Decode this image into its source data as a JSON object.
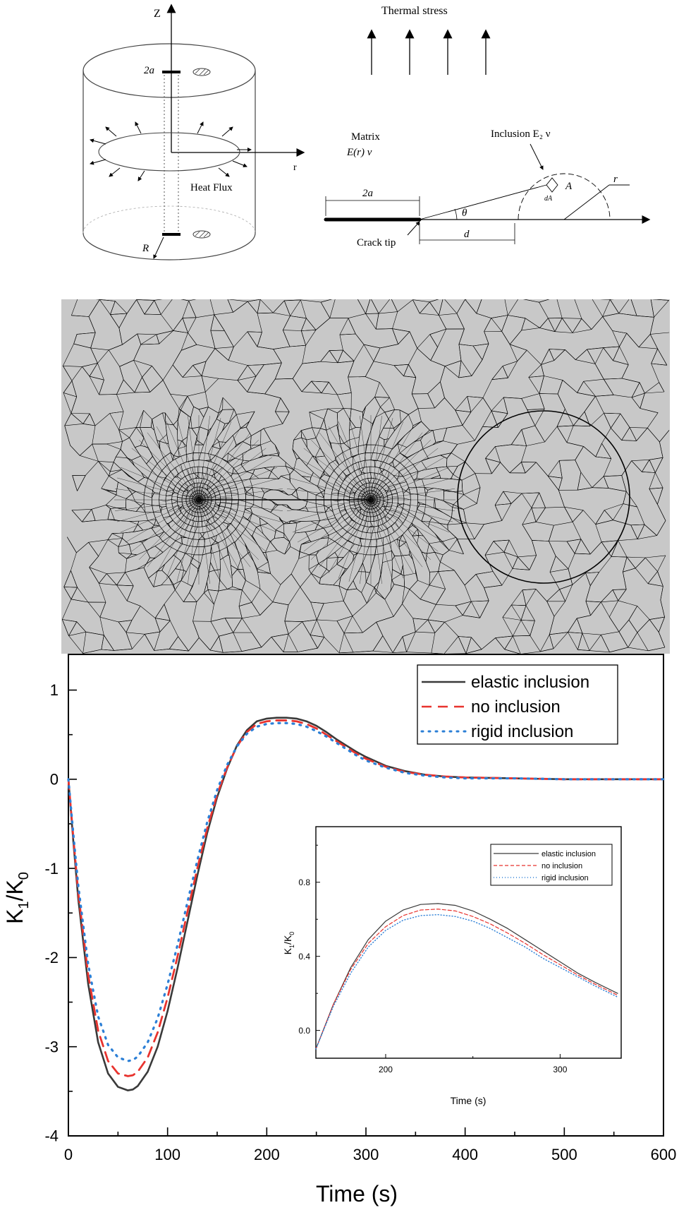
{
  "schematic": {
    "cylinder_labels": {
      "z_axis": "Z",
      "r_axis": "r",
      "crack_length": "2a",
      "heat_flux": "Heat Flux",
      "radius": "R"
    },
    "crack_labels": {
      "thermal_stress": "Thermal stress",
      "matrix_line1": "Matrix",
      "matrix_line2": "E(r) ν",
      "inclusion": "Inclusion E₂ ν",
      "crack_length": "2a",
      "angle": "θ",
      "area": "A",
      "area_element": "dA",
      "radius": "r",
      "distance": "d",
      "crack_tip": "Crack tip"
    }
  },
  "mesh": {
    "description_visible": false
  },
  "chart_data": [
    {
      "type": "line",
      "title": "",
      "xlabel": "Time (s)",
      "ylabel": "K1/K0",
      "xlim": [
        0,
        600
      ],
      "ylim": [
        -4,
        1.4
      ],
      "xticks": [
        "0",
        "100",
        "200",
        "300",
        "400",
        "500",
        "600"
      ],
      "yticks": [
        "-4",
        "-3",
        "-2",
        "-1",
        "0",
        "1"
      ],
      "legend_position": "top-right",
      "grid": false,
      "series": [
        {
          "name": "elastic inclusion",
          "color": "#3a3a3a",
          "style": "solid",
          "x": [
            0,
            5,
            10,
            20,
            30,
            40,
            50,
            60,
            65,
            70,
            80,
            90,
            100,
            110,
            120,
            130,
            140,
            150,
            160,
            170,
            180,
            190,
            200,
            210,
            220,
            230,
            240,
            250,
            260,
            270,
            280,
            290,
            300,
            320,
            340,
            360,
            380,
            400,
            450,
            500,
            550,
            600
          ],
          "y": [
            0,
            -0.7,
            -1.35,
            -2.3,
            -2.95,
            -3.3,
            -3.45,
            -3.49,
            -3.48,
            -3.44,
            -3.28,
            -3.0,
            -2.6,
            -2.12,
            -1.6,
            -1.08,
            -0.6,
            -0.2,
            0.12,
            0.38,
            0.55,
            0.65,
            0.68,
            0.69,
            0.69,
            0.68,
            0.65,
            0.6,
            0.53,
            0.45,
            0.38,
            0.31,
            0.25,
            0.15,
            0.09,
            0.05,
            0.03,
            0.02,
            0.01,
            0.0,
            0.0,
            0.0
          ]
        },
        {
          "name": "no inclusion",
          "color": "#e8332e",
          "style": "dashed",
          "x": [
            0,
            5,
            10,
            20,
            30,
            40,
            50,
            60,
            65,
            70,
            80,
            90,
            100,
            110,
            120,
            130,
            140,
            150,
            160,
            170,
            180,
            190,
            200,
            210,
            220,
            230,
            240,
            250,
            260,
            270,
            280,
            290,
            300,
            320,
            340,
            360,
            380,
            400,
            450,
            500,
            550,
            600
          ],
          "y": [
            0,
            -0.66,
            -1.28,
            -2.2,
            -2.82,
            -3.16,
            -3.3,
            -3.33,
            -3.32,
            -3.28,
            -3.12,
            -2.84,
            -2.45,
            -1.99,
            -1.49,
            -1.0,
            -0.55,
            -0.17,
            0.13,
            0.37,
            0.53,
            0.62,
            0.65,
            0.66,
            0.66,
            0.65,
            0.62,
            0.57,
            0.5,
            0.43,
            0.36,
            0.29,
            0.23,
            0.14,
            0.08,
            0.05,
            0.03,
            0.02,
            0.01,
            0.0,
            0.0,
            0.0
          ]
        },
        {
          "name": "rigid inclusion",
          "color": "#2b7fd6",
          "style": "dotted",
          "x": [
            0,
            5,
            10,
            20,
            30,
            40,
            50,
            60,
            65,
            70,
            80,
            90,
            100,
            110,
            120,
            130,
            140,
            150,
            160,
            170,
            180,
            190,
            200,
            210,
            220,
            230,
            240,
            250,
            260,
            270,
            280,
            290,
            300,
            320,
            340,
            360,
            380,
            400,
            450,
            500,
            550,
            600
          ],
          "y": [
            0,
            -0.62,
            -1.2,
            -2.08,
            -2.66,
            -2.98,
            -3.12,
            -3.16,
            -3.15,
            -3.11,
            -2.95,
            -2.68,
            -2.3,
            -1.86,
            -1.38,
            -0.91,
            -0.48,
            -0.12,
            0.16,
            0.37,
            0.51,
            0.59,
            0.62,
            0.63,
            0.63,
            0.62,
            0.59,
            0.54,
            0.48,
            0.41,
            0.34,
            0.27,
            0.21,
            0.13,
            0.07,
            0.04,
            0.02,
            0.01,
            0.01,
            0.0,
            0.0,
            0.0
          ]
        }
      ]
    },
    {
      "type": "line",
      "title": "",
      "xlabel": "Time (s)",
      "ylabel": "K1/K0",
      "xlim": [
        160,
        335
      ],
      "ylim": [
        -0.15,
        1.1
      ],
      "xticks": [
        "200",
        "300"
      ],
      "yticks": [
        "0.0",
        "0.4",
        "0.8"
      ],
      "legend_position": "top-right",
      "grid": false,
      "series": [
        {
          "name": "elastic inclusion",
          "color": "#3a3a3a",
          "style": "solid",
          "x": [
            160,
            170,
            180,
            190,
            200,
            210,
            220,
            230,
            240,
            250,
            260,
            270,
            280,
            290,
            300,
            310,
            320,
            333
          ],
          "y": [
            -0.1,
            0.14,
            0.34,
            0.49,
            0.59,
            0.65,
            0.68,
            0.685,
            0.675,
            0.645,
            0.6,
            0.55,
            0.49,
            0.43,
            0.37,
            0.31,
            0.26,
            0.2
          ]
        },
        {
          "name": "no inclusion",
          "color": "#e8332e",
          "style": "dashed",
          "x": [
            160,
            170,
            180,
            190,
            200,
            210,
            220,
            230,
            240,
            250,
            260,
            270,
            280,
            290,
            300,
            310,
            320,
            333
          ],
          "y": [
            -0.1,
            0.14,
            0.33,
            0.47,
            0.56,
            0.62,
            0.65,
            0.655,
            0.645,
            0.615,
            0.575,
            0.525,
            0.47,
            0.41,
            0.355,
            0.3,
            0.25,
            0.19
          ]
        },
        {
          "name": "rigid inclusion",
          "color": "#2b7fd6",
          "style": "dotted",
          "x": [
            160,
            170,
            180,
            190,
            200,
            210,
            220,
            230,
            240,
            250,
            260,
            270,
            280,
            290,
            300,
            310,
            320,
            333
          ],
          "y": [
            -0.1,
            0.13,
            0.31,
            0.45,
            0.54,
            0.595,
            0.62,
            0.625,
            0.615,
            0.59,
            0.55,
            0.5,
            0.45,
            0.39,
            0.34,
            0.29,
            0.24,
            0.18
          ]
        }
      ]
    }
  ]
}
